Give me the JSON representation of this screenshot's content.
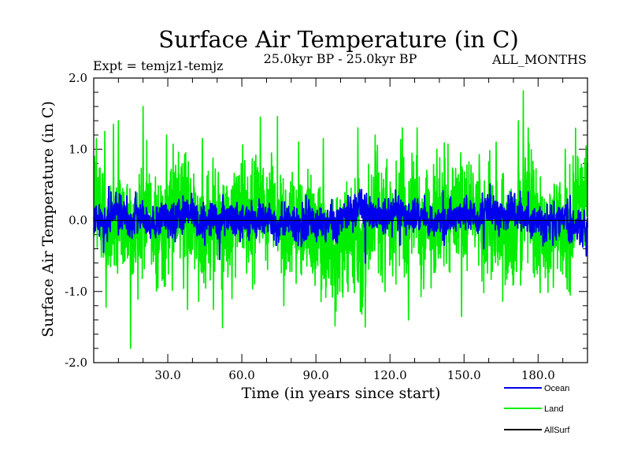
{
  "chart_data": {
    "type": "line",
    "title": "Surface Air Temperature (in C)",
    "subtitle_left": "Expt = temjz1-temjz",
    "subtitle_center": "25.0kyr BP - 25.0kyr BP",
    "subtitle_right": "ALL_MONTHS",
    "xlabel": "Time (in years since start)",
    "ylabel": "Surface Air Temperature (in C)",
    "xlim": [
      0,
      200
    ],
    "ylim": [
      -2.0,
      2.0
    ],
    "x_ticks": [
      30,
      60,
      90,
      120,
      150,
      180
    ],
    "x_tick_labels": [
      "30.0",
      "60.0",
      "90.0",
      "120.0",
      "150.0",
      "180.0"
    ],
    "y_ticks": [
      -2.0,
      -1.0,
      0.0,
      1.0,
      2.0
    ],
    "y_tick_labels": [
      "-2.0",
      "-1.0",
      "0.0",
      "1.0",
      "2.0"
    ],
    "zero_line": 0.0,
    "series": [
      {
        "name": "Land",
        "color": "#00ee00",
        "sampling": "monthly",
        "noise_sd": 0.37,
        "anchors": [
          [
            0.3,
            0.9
          ],
          [
            1.1,
            1.15
          ],
          [
            4.5,
            1.25
          ],
          [
            5.0,
            -1.22
          ],
          [
            8.0,
            1.35
          ],
          [
            10.0,
            1.4
          ],
          [
            20.0,
            1.6
          ],
          [
            26.0,
            -0.95
          ],
          [
            29.5,
            1.2
          ],
          [
            38.0,
            -1.25
          ],
          [
            44.0,
            1.15
          ],
          [
            48.5,
            -1.25
          ],
          [
            56.0,
            -1.1
          ],
          [
            67.5,
            1.45
          ],
          [
            77.0,
            -1.2
          ],
          [
            83.0,
            1.1
          ],
          [
            93.0,
            1.15
          ],
          [
            103.0,
            -1.0
          ],
          [
            107.0,
            1.3
          ],
          [
            110.0,
            -1.5
          ],
          [
            114.0,
            1.2
          ],
          [
            118.0,
            -1.0
          ],
          [
            125.0,
            1.3
          ],
          [
            127.5,
            -1.4
          ],
          [
            131.0,
            1.3
          ],
          [
            139.0,
            1.0
          ],
          [
            149.0,
            -1.35
          ],
          [
            163.0,
            1.1
          ],
          [
            172.0,
            1.4
          ],
          [
            174.0,
            1.82
          ],
          [
            176.0,
            1.3
          ],
          [
            191.0,
            1.0
          ],
          [
            193.0,
            -1.05
          ],
          [
            196.0,
            0.9
          ]
        ]
      },
      {
        "name": "Ocean",
        "color": "#0000ee",
        "sampling": "monthly",
        "noise_sd": 0.11,
        "anchors": [
          [
            1.0,
            0.2
          ],
          [
            4.0,
            -0.45
          ],
          [
            7.0,
            0.4
          ],
          [
            11.0,
            0.35
          ],
          [
            17.0,
            0.4
          ],
          [
            23.0,
            -0.25
          ],
          [
            33.0,
            -0.3
          ],
          [
            40.0,
            0.3
          ],
          [
            45.0,
            -0.35
          ],
          [
            51.0,
            -0.55
          ],
          [
            58.0,
            0.25
          ],
          [
            67.0,
            0.3
          ],
          [
            74.0,
            -0.35
          ],
          [
            86.0,
            0.35
          ],
          [
            94.0,
            -0.3
          ],
          [
            103.0,
            0.35
          ],
          [
            110.0,
            -0.6
          ],
          [
            118.0,
            0.3
          ],
          [
            124.0,
            -0.35
          ],
          [
            134.0,
            0.35
          ],
          [
            142.0,
            -0.35
          ],
          [
            151.0,
            0.35
          ],
          [
            158.0,
            -0.4
          ],
          [
            168.0,
            0.35
          ],
          [
            176.0,
            0.4
          ],
          [
            186.0,
            -0.35
          ],
          [
            193.0,
            0.35
          ],
          [
            199.5,
            -0.5
          ]
        ]
      },
      {
        "name": "AllSurf",
        "color": "#000000",
        "sampling": "monthly",
        "noise_sd": 0.0,
        "anchors": []
      }
    ],
    "legend": {
      "position": "bottom-right",
      "entries": [
        {
          "label": "Ocean",
          "color": "#0000ee"
        },
        {
          "label": "Land",
          "color": "#00ee00"
        },
        {
          "label": "AllSurf",
          "color": "#000000"
        }
      ]
    }
  }
}
